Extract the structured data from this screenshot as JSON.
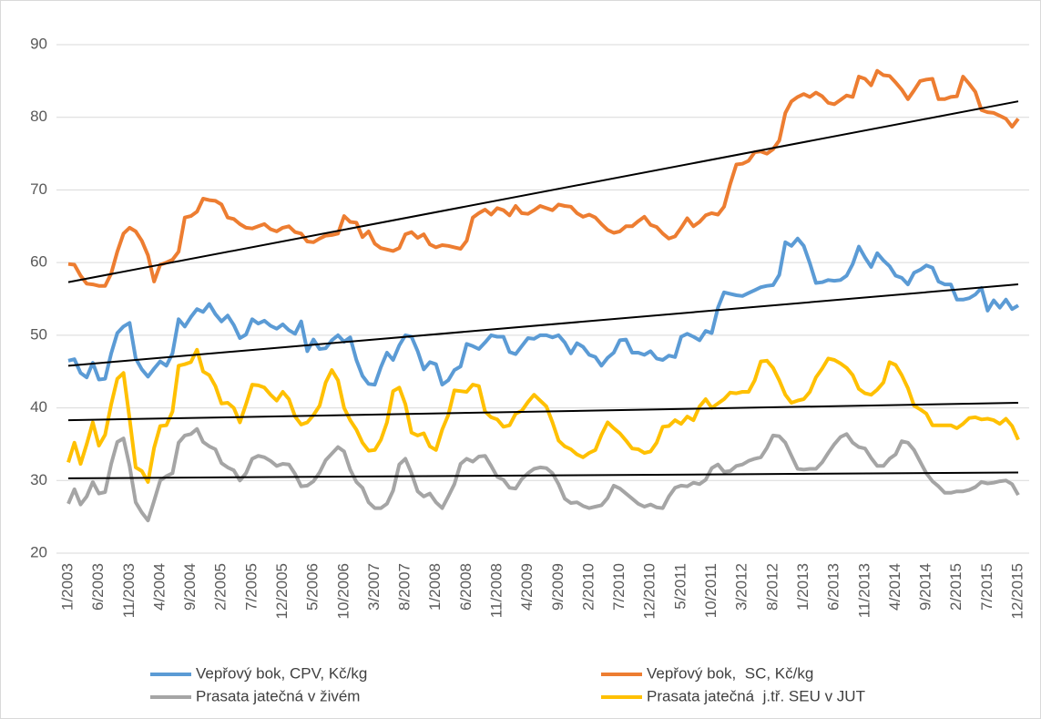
{
  "chart_data": {
    "type": "line",
    "categories": [
      "1/2003",
      null,
      null,
      null,
      null,
      "6/2003",
      null,
      null,
      null,
      null,
      "11/2003",
      null,
      null,
      null,
      null,
      "4/2004",
      null,
      null,
      null,
      null,
      "9/2004",
      null,
      null,
      null,
      null,
      "2/2005",
      null,
      null,
      null,
      null,
      "7/2005",
      null,
      null,
      null,
      null,
      "12/2005",
      null,
      null,
      null,
      null,
      "5/2006",
      null,
      null,
      null,
      null,
      "10/2006",
      null,
      null,
      null,
      null,
      "3/2007",
      null,
      null,
      null,
      null,
      "8/2007",
      null,
      null,
      null,
      null,
      "1/2008",
      null,
      null,
      null,
      null,
      "6/2008",
      null,
      null,
      null,
      null,
      "11/2008",
      null,
      null,
      null,
      null,
      "4/2009",
      null,
      null,
      null,
      null,
      "9/2009",
      null,
      null,
      null,
      null,
      "2/2010",
      null,
      null,
      null,
      null,
      "7/2010",
      null,
      null,
      null,
      null,
      "12/2010",
      null,
      null,
      null,
      null,
      "5/2011",
      null,
      null,
      null,
      null,
      "10/2011",
      null,
      null,
      null,
      null,
      "3/2012",
      null,
      null,
      null,
      null,
      "8/2012",
      null,
      null,
      null,
      null,
      "1/2013",
      null,
      null,
      null,
      null,
      "6/2013",
      null,
      null,
      null,
      null,
      "11/2013",
      null,
      null,
      null,
      null,
      "4/2014",
      null,
      null,
      null,
      null,
      "9/2014",
      null,
      null,
      null,
      null,
      "2/2015",
      null,
      null,
      null,
      null,
      "7/2015",
      null,
      null,
      null,
      null,
      "12/2015"
    ],
    "series": [
      {
        "name": "Vepřový bok, CPV, Kč/kg",
        "color": "#5b9bd5",
        "values": [
          46.5,
          46.7,
          44.8,
          44.2,
          46.2,
          43.9,
          44,
          47.5,
          50.3,
          51.2,
          51.7,
          46.8,
          45.3,
          44.3,
          45.4,
          46.4,
          45.8,
          47.5,
          52.2,
          51.2,
          52.5,
          53.6,
          53.2,
          54.3,
          52.9,
          51.9,
          52.7,
          51.4,
          49.6,
          50.1,
          52.2,
          51.6,
          52,
          51.3,
          50.9,
          51.5,
          50.7,
          50.2,
          51.9,
          47.8,
          49.4,
          48.1,
          48.2,
          49.3,
          50,
          49.1,
          49.7,
          46.6,
          44.4,
          43.3,
          43.2,
          45.6,
          47.6,
          46.6,
          48.6,
          50,
          49.8,
          47.8,
          45.3,
          46.3,
          46,
          43.2,
          43.8,
          45.2,
          45.7,
          48.8,
          48.5,
          48.1,
          49,
          50,
          49.8,
          49.8,
          47.7,
          47.4,
          48.5,
          49.6,
          49.5,
          50,
          50,
          49.7,
          50,
          49,
          47.5,
          48.9,
          48.4,
          47.3,
          47,
          45.8,
          46.9,
          47.6,
          49.3,
          49.4,
          47.6,
          47.6,
          47.3,
          47.8,
          46.8,
          46.6,
          47.2,
          47,
          49.8,
          50.2,
          49.8,
          49.3,
          50.6,
          50.3,
          53.8,
          55.9,
          55.7,
          55.5,
          55.4,
          55.8,
          56.2,
          56.6,
          56.8,
          56.9,
          58.3,
          62.8,
          62.3,
          63.3,
          62.3,
          59.9,
          57.2,
          57.3,
          57.6,
          57.5,
          57.6,
          58.2,
          59.8,
          62.2,
          60.7,
          59.4,
          61.3,
          60.3,
          59.5,
          58.2,
          57.9,
          57,
          58.6,
          59,
          59.6,
          59.3,
          57.4,
          57,
          57,
          54.9,
          54.9,
          55.1,
          55.6,
          56.5,
          53.4,
          54.8,
          53.8,
          54.9,
          53.6,
          54.1
        ]
      },
      {
        "name": "Vepřový bok,  SC, Kč/kg",
        "color": "#ed7d31",
        "values": [
          59.8,
          59.7,
          58.2,
          57.1,
          57,
          56.8,
          56.8,
          58.5,
          61.5,
          64,
          64.8,
          64.3,
          63,
          61,
          57.4,
          59.7,
          60,
          60.4,
          61.5,
          66.2,
          66.4,
          67,
          68.8,
          68.6,
          68.5,
          68,
          66.2,
          66,
          65.3,
          64.8,
          64.7,
          65,
          65.3,
          64.6,
          64.3,
          64.8,
          65,
          64.2,
          64,
          62.9,
          62.8,
          63.3,
          63.7,
          63.8,
          64,
          66.4,
          65.6,
          65.5,
          63.5,
          64.3,
          62.6,
          62,
          61.8,
          61.6,
          62,
          63.9,
          64.2,
          63.4,
          63.9,
          62.5,
          62.1,
          62.4,
          62.3,
          62.1,
          61.9,
          63,
          66.2,
          66.8,
          67.3,
          66.6,
          67.5,
          67.2,
          66.5,
          67.8,
          66.8,
          66.7,
          67.2,
          67.8,
          67.5,
          67.2,
          68,
          67.8,
          67.7,
          66.8,
          66.3,
          66.6,
          66.2,
          65.3,
          64.5,
          64.1,
          64.3,
          65,
          65,
          65.7,
          66.3,
          65.2,
          64.9,
          64,
          63.3,
          63.6,
          64.8,
          66.1,
          65,
          65.6,
          66.5,
          66.8,
          66.6,
          67.7,
          70.8,
          73.5,
          73.6,
          74,
          75.2,
          75.3,
          75,
          75.6,
          76.8,
          80.6,
          82.2,
          82.8,
          83.2,
          82.8,
          83.4,
          82.9,
          82,
          81.8,
          82.4,
          83,
          82.8,
          85.6,
          85.3,
          84.4,
          86.4,
          85.8,
          85.7,
          84.8,
          83.8,
          82.5,
          83.7,
          85,
          85.2,
          85.3,
          82.5,
          82.5,
          82.8,
          82.9,
          85.6,
          84.6,
          83.5,
          81,
          80.7,
          80.6,
          80.2,
          79.8,
          78.7,
          79.8
        ]
      },
      {
        "name": "Prasata jatečná v živém",
        "color": "#a5a5a5",
        "values": [
          26.8,
          28.8,
          26.7,
          27.8,
          29.8,
          28.2,
          28.4,
          32.3,
          35.3,
          35.8,
          32,
          27,
          25.6,
          24.5,
          27.2,
          30,
          30.6,
          31,
          35.2,
          36.2,
          36.4,
          37.1,
          35.3,
          34.7,
          34.3,
          32.4,
          31.8,
          31.4,
          30,
          31,
          33,
          33.4,
          33.2,
          32.7,
          32,
          32.3,
          32.2,
          30.9,
          29.2,
          29.3,
          29.9,
          31.1,
          32.8,
          33.7,
          34.6,
          34,
          31.5,
          29.8,
          29,
          27,
          26.2,
          26.2,
          26.8,
          28.6,
          32.2,
          33,
          31,
          28.5,
          27.8,
          28.2,
          27,
          26.2,
          27.8,
          29.5,
          32.3,
          33,
          32.6,
          33.3,
          33.4,
          32,
          30.5,
          30.1,
          29,
          28.9,
          30.2,
          31,
          31.6,
          31.8,
          31.7,
          31,
          29.5,
          27.5,
          26.9,
          27,
          26.5,
          26.2,
          26.4,
          26.6,
          27.6,
          29.3,
          28.9,
          28.2,
          27.5,
          26.8,
          26.4,
          26.7,
          26.3,
          26.2,
          27.8,
          29,
          29.3,
          29.2,
          29.7,
          29.5,
          30.1,
          31.7,
          32.2,
          31.2,
          31.3,
          32,
          32.2,
          32.7,
          33,
          33.2,
          34.5,
          36.2,
          36.1,
          35.2,
          33.4,
          31.6,
          31.5,
          31.6,
          31.6,
          32.5,
          33.8,
          35,
          36,
          36.4,
          35.2,
          34.6,
          34.4,
          33.1,
          32,
          32,
          33,
          33.6,
          35.4,
          35.2,
          34.2,
          32.6,
          31,
          29.9,
          29.2,
          28.3,
          28.3,
          28.5,
          28.5,
          28.7,
          29.1,
          29.8,
          29.6,
          29.7,
          29.9,
          30,
          29.5,
          28
        ]
      },
      {
        "name": "Prasata jatečná  j.tř. SEU v JUT",
        "color": "#ffc000",
        "values": [
          32.5,
          35.2,
          32.3,
          35,
          38,
          34.8,
          36.3,
          40.5,
          44,
          44.8,
          38.5,
          31.8,
          31.3,
          29.8,
          34.5,
          37.5,
          37.6,
          39.5,
          45.8,
          46,
          46.3,
          48,
          45,
          44.5,
          43,
          40.6,
          40.7,
          40,
          38,
          40.5,
          43.2,
          43.1,
          42.8,
          41.8,
          41,
          42.2,
          41.2,
          38.8,
          37.7,
          38,
          39,
          40.3,
          43.5,
          45.2,
          43.8,
          40,
          38.3,
          37,
          35.2,
          34.1,
          34.2,
          35.6,
          38,
          42.3,
          42.8,
          40.5,
          36.6,
          36.2,
          36.5,
          34.7,
          34.2,
          37,
          39,
          42.4,
          42.3,
          42.2,
          43.2,
          43,
          39.5,
          38.7,
          38.4,
          37.4,
          37.6,
          39.2,
          39.6,
          40.8,
          41.8,
          41,
          40.2,
          38,
          35.5,
          34.7,
          34.3,
          33.6,
          33.2,
          33.8,
          34.2,
          36.3,
          38,
          37.2,
          36.5,
          35.5,
          34.4,
          34.3,
          33.8,
          34,
          35.2,
          37.4,
          37.5,
          38.3,
          37.8,
          38.8,
          38.3,
          40.2,
          41.2,
          40,
          40.6,
          41.2,
          42.1,
          42,
          42.2,
          42.2,
          43.8,
          46.4,
          46.5,
          45.5,
          43.8,
          41.8,
          40.7,
          41,
          41.2,
          42.2,
          44.2,
          45.4,
          46.8,
          46.6,
          46.1,
          45.5,
          44.5,
          42.6,
          42,
          41.8,
          42.5,
          43.5,
          46.3,
          45.9,
          44.5,
          42.7,
          40.3,
          39.8,
          39.2,
          37.6,
          37.6,
          37.6,
          37.6,
          37.2,
          37.8,
          38.6,
          38.7,
          38.4,
          38.5,
          38.3,
          37.8,
          38.5,
          37.5,
          35.6
        ]
      }
    ],
    "trendlines": [
      {
        "series": 0,
        "color": "#000000",
        "start": 45.8,
        "end": 57
      },
      {
        "series": 1,
        "color": "#000000",
        "start": 57.3,
        "end": 82.2
      },
      {
        "series": 2,
        "color": "#000000",
        "start": 30.3,
        "end": 31.1
      },
      {
        "series": 3,
        "color": "#000000",
        "start": 38.3,
        "end": 40.7
      }
    ],
    "ylim": [
      20,
      90
    ],
    "yticks": [
      20,
      30,
      40,
      50,
      60,
      70,
      80,
      90
    ],
    "grid": true,
    "legend": "bottom"
  }
}
